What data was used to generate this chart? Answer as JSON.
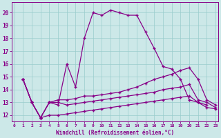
{
  "xlabel": "Windchill (Refroidissement éolien,°C)",
  "xlim": [
    -0.3,
    23.3
  ],
  "ylim": [
    11.5,
    20.8
  ],
  "yticks": [
    12,
    13,
    14,
    15,
    16,
    17,
    18,
    19,
    20
  ],
  "xticks": [
    0,
    1,
    2,
    3,
    4,
    5,
    6,
    7,
    8,
    9,
    10,
    11,
    12,
    13,
    14,
    15,
    16,
    17,
    18,
    19,
    20,
    21,
    22,
    23
  ],
  "background_color": "#cce8e8",
  "line_color": "#880088",
  "grid_color": "#99cccc",
  "series1_x": [
    1,
    2,
    3,
    4,
    5,
    6,
    7,
    8,
    9,
    10,
    11,
    12,
    13,
    14,
    15,
    16,
    17,
    18,
    19,
    20,
    21,
    22
  ],
  "series1_y": [
    14.8,
    13.0,
    11.8,
    13.0,
    12.8,
    16.0,
    14.2,
    18.0,
    20.0,
    19.8,
    20.2,
    20.0,
    19.8,
    19.8,
    18.5,
    17.2,
    15.8,
    15.6,
    14.8,
    13.2,
    13.0,
    12.8
  ],
  "series2_x": [
    1,
    2,
    3,
    4,
    5,
    6,
    7,
    8,
    9,
    10,
    11,
    12,
    13,
    14,
    15,
    16,
    17,
    18,
    19,
    20,
    21,
    22,
    23
  ],
  "series2_y": [
    14.8,
    13.0,
    11.8,
    13.0,
    13.2,
    13.2,
    13.3,
    13.5,
    13.5,
    13.6,
    13.7,
    13.8,
    14.0,
    14.2,
    14.5,
    14.8,
    15.0,
    15.2,
    15.5,
    15.7,
    14.8,
    13.2,
    12.8
  ],
  "series3_x": [
    1,
    2,
    3,
    4,
    5,
    6,
    7,
    8,
    9,
    10,
    11,
    12,
    13,
    14,
    15,
    16,
    17,
    18,
    19,
    20,
    21,
    22,
    23
  ],
  "series3_y": [
    14.8,
    13.0,
    11.8,
    13.0,
    13.0,
    12.8,
    12.9,
    13.0,
    13.1,
    13.2,
    13.3,
    13.4,
    13.5,
    13.6,
    13.7,
    13.8,
    14.0,
    14.1,
    14.2,
    14.4,
    13.2,
    13.0,
    12.6
  ],
  "series4_x": [
    1,
    2,
    3,
    4,
    5,
    6,
    7,
    8,
    9,
    10,
    11,
    12,
    13,
    14,
    15,
    16,
    17,
    18,
    19,
    20,
    21,
    22,
    23
  ],
  "series4_y": [
    14.8,
    13.0,
    11.8,
    12.0,
    12.0,
    12.1,
    12.2,
    12.3,
    12.4,
    12.5,
    12.6,
    12.7,
    12.8,
    12.9,
    13.0,
    13.1,
    13.2,
    13.3,
    13.4,
    13.5,
    13.0,
    12.6,
    12.5
  ]
}
